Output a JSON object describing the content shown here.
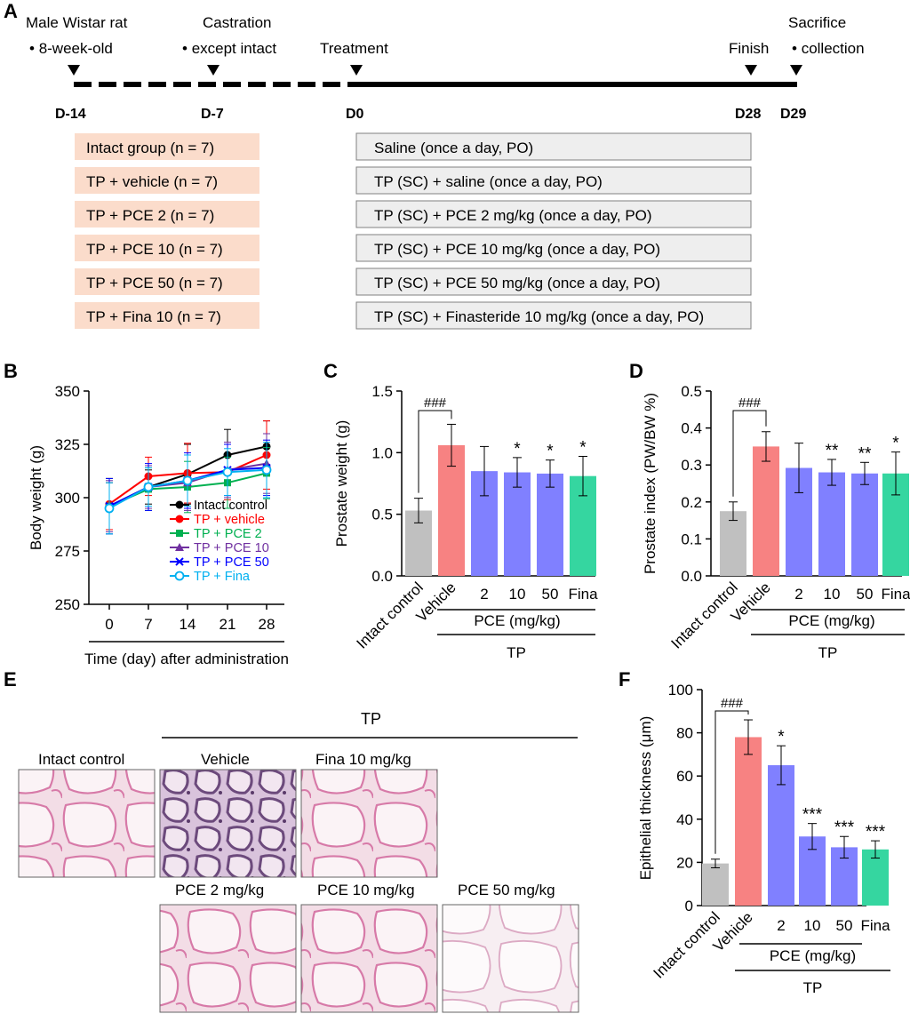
{
  "colors": {
    "grey": "#c0c0c0",
    "red": "#f78282",
    "blue": "#8080ff",
    "green": "#35d6a0",
    "group_box": "#fbdccb",
    "treat_box": "#eeeeee",
    "intact": "#000000",
    "vehicle": "#ff0000",
    "pce2": "#00b050",
    "pce10": "#7030a0",
    "pce50": "#0000ff",
    "fina": "#00b0f0"
  },
  "panelA": {
    "label": "A",
    "events": [
      {
        "title": "Male Wistar rat",
        "sub": "8-week-old",
        "day": "D-14"
      },
      {
        "title": "Castration",
        "sub": "except intact",
        "day": "D-7"
      },
      {
        "title": "Treatment",
        "sub": "",
        "day": "D0"
      },
      {
        "title": "Finish",
        "sub": "",
        "day": "D28"
      },
      {
        "title": "Sacrifice",
        "sub": "collection",
        "day": "D29"
      }
    ],
    "groups": [
      "Intact group (n = 7)",
      "TP + vehicle (n = 7)",
      "TP + PCE 2 (n = 7)",
      "TP + PCE 10 (n = 7)",
      "TP + PCE 50 (n = 7)",
      "TP + Fina 10 (n = 7)"
    ],
    "treatments": [
      "Saline (once a day, PO)",
      "TP (SC) + saline (once a day, PO)",
      "TP (SC) + PCE 2 mg/kg (once a day, PO)",
      "TP (SC) + PCE 10 mg/kg (once a day, PO)",
      "TP (SC) + PCE 50 mg/kg (once a day, PO)",
      "TP (SC) + Finasteride 10 mg/kg (once a day, PO)"
    ]
  },
  "panelE": {
    "label": "E",
    "group_label": "TP",
    "images": [
      "Intact control",
      "Vehicle",
      "Fina 10 mg/kg",
      "PCE 2 mg/kg",
      "PCE 10 mg/kg",
      "PCE 50 mg/kg"
    ]
  },
  "chart_data": [
    {
      "id": "B",
      "label": "B",
      "type": "line",
      "title": "",
      "xlabel": "Time (day) after administration",
      "ylabel": "Body weight (g)",
      "ylim": [
        250,
        350
      ],
      "yticks": [
        250,
        275,
        300,
        325,
        350
      ],
      "x": [
        0,
        7,
        14,
        21,
        28
      ],
      "x_ticks": [
        "0",
        "7",
        "14",
        "21",
        "28"
      ],
      "legend_position": "inside-lower-right",
      "series": [
        {
          "name": "Intact control",
          "values": [
            296,
            305,
            311,
            320,
            324
          ],
          "err": [
            11,
            8,
            14,
            12,
            12
          ]
        },
        {
          "name": "TP + vehicle",
          "values": [
            297,
            310,
            311.5,
            312,
            320
          ],
          "err": [
            12,
            9,
            14,
            13,
            16
          ]
        },
        {
          "name": "TP + PCE 2",
          "values": [
            296,
            304,
            305,
            307,
            311.5
          ],
          "err": [
            13,
            10,
            12,
            12,
            12
          ]
        },
        {
          "name": "TP + PCE 10",
          "values": [
            296,
            305,
            307,
            313,
            316
          ],
          "err": [
            12,
            10,
            13,
            13,
            14
          ]
        },
        {
          "name": "TP + PCE 50",
          "values": [
            296,
            305,
            308,
            313,
            314
          ],
          "err": [
            13,
            11,
            13,
            12,
            13
          ]
        },
        {
          "name": "TP + Fina",
          "values": [
            295,
            305,
            308,
            312,
            313
          ],
          "err": [
            12,
            9,
            12,
            11,
            13
          ]
        }
      ]
    },
    {
      "id": "C",
      "label": "C",
      "type": "bar",
      "title": "",
      "ylabel": "Prostate weight (g)",
      "ylim": [
        0,
        1.5
      ],
      "yticks": [
        "0.0",
        "0.5",
        "1.0",
        "1.5"
      ],
      "ytick_values": [
        0,
        0.5,
        1.0,
        1.5
      ],
      "categories": [
        "Intact control",
        "Vehicle",
        "2",
        "10",
        "50",
        "Fina"
      ],
      "values": [
        0.53,
        1.06,
        0.85,
        0.84,
        0.83,
        0.81
      ],
      "errors": [
        0.1,
        0.17,
        0.2,
        0.12,
        0.11,
        0.16
      ],
      "annotations": [
        "",
        "",
        "",
        "*",
        "*",
        "*"
      ],
      "comparison": "###",
      "group_label": "PCE (mg/kg)",
      "treatment_label": "TP"
    },
    {
      "id": "D",
      "label": "D",
      "type": "bar",
      "title": "",
      "ylabel": "Prostate index (PW/BW %)",
      "ylim": [
        0,
        0.5
      ],
      "yticks": [
        "0.0",
        "0.1",
        "0.2",
        "0.3",
        "0.4",
        "0.5"
      ],
      "ytick_values": [
        0,
        0.1,
        0.2,
        0.3,
        0.4,
        0.5
      ],
      "categories": [
        "Intact control",
        "Vehicle",
        "2",
        "10",
        "50",
        "Fina"
      ],
      "values": [
        0.175,
        0.35,
        0.292,
        0.28,
        0.277,
        0.277
      ],
      "errors": [
        0.025,
        0.04,
        0.067,
        0.035,
        0.03,
        0.058
      ],
      "annotations": [
        "",
        "",
        "",
        "**",
        "**",
        "*"
      ],
      "comparison": "###",
      "group_label": "PCE (mg/kg)",
      "treatment_label": "TP"
    },
    {
      "id": "F",
      "label": "F",
      "type": "bar",
      "title": "",
      "ylabel": "Epithelial thickness (μm)",
      "ylim": [
        0,
        100
      ],
      "yticks": [
        "0",
        "20",
        "40",
        "60",
        "80",
        "100"
      ],
      "ytick_values": [
        0,
        20,
        40,
        60,
        80,
        100
      ],
      "categories": [
        "Intact control",
        "Vehicle",
        "2",
        "10",
        "50",
        "Fina"
      ],
      "values": [
        19.5,
        78,
        65,
        32,
        27,
        26
      ],
      "errors": [
        2,
        8,
        9,
        6,
        5,
        4
      ],
      "annotations": [
        "",
        "",
        "*",
        "***",
        "***",
        "***"
      ],
      "comparison": "###",
      "group_label": "PCE (mg/kg)",
      "treatment_label": "TP"
    }
  ]
}
